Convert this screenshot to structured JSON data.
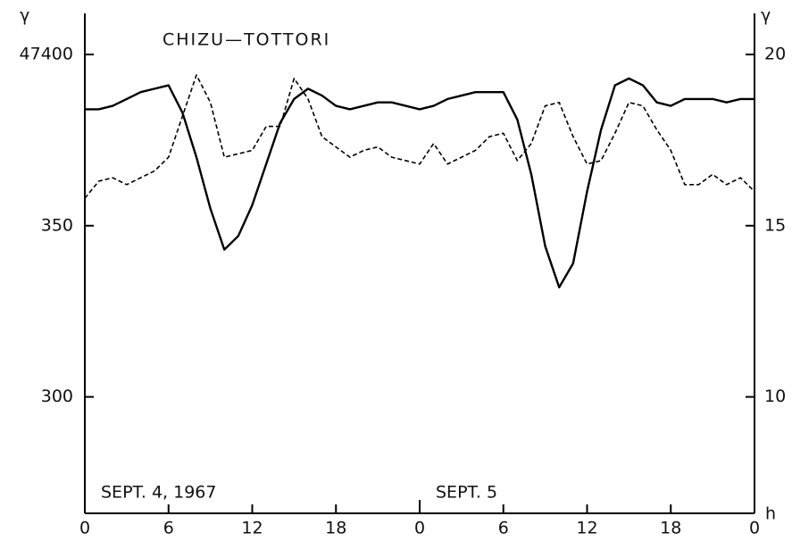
{
  "chart_data": {
    "type": "line",
    "title": "CHIZU—TOTTORI",
    "y_unit": "γ",
    "y2_unit": "γ",
    "x_unit": "h",
    "annotations": [
      {
        "text": "SEPT. 4, 1967",
        "x": 0
      },
      {
        "text": "SEPT. 5",
        "x": 24
      }
    ],
    "x": [
      0,
      1,
      2,
      3,
      4,
      5,
      6,
      7,
      8,
      9,
      10,
      11,
      12,
      13,
      14,
      15,
      16,
      17,
      18,
      19,
      20,
      21,
      22,
      23,
      24,
      25,
      26,
      27,
      28,
      29,
      30,
      31,
      32,
      33,
      34,
      35,
      36,
      37,
      38,
      39,
      40,
      41,
      42,
      43,
      44,
      45,
      46,
      47,
      48
    ],
    "xlim": [
      0,
      48
    ],
    "xticks": [
      0,
      6,
      12,
      18,
      {
        "value": 24,
        "label": "0"
      },
      {
        "value": 30,
        "label": "6"
      },
      {
        "value": 36,
        "label": "12"
      },
      {
        "value": 42,
        "label": "18"
      },
      {
        "value": 48,
        "label": "0"
      }
    ],
    "ylim": [
      47266,
      47412
    ],
    "yticks": [
      47400,
      {
        "value": 47350,
        "label": "350"
      },
      {
        "value": 47300,
        "label": "300"
      }
    ],
    "y2lim": [
      6.6,
      21.2
    ],
    "y2ticks": [
      20,
      15,
      10
    ],
    "series": [
      {
        "name": "solid",
        "color": "#000000",
        "dash": false,
        "values": [
          47384,
          47384,
          47385,
          47387,
          47389,
          47390,
          47391,
          47383,
          47370,
          47355,
          47343,
          47347,
          47356,
          47368,
          47380,
          47387,
          47390,
          47388,
          47385,
          47384,
          47385,
          47386,
          47386,
          47385,
          47384,
          47385,
          47387,
          47388,
          47389,
          47389,
          47389,
          47381,
          47365,
          47344,
          47332,
          47339,
          47360,
          47378,
          47391,
          47393,
          47391,
          47386,
          47385,
          47387,
          47387,
          47387,
          47386,
          47387,
          47387
        ]
      },
      {
        "name": "dashed",
        "color": "#000000",
        "dash": true,
        "axis": "y2",
        "values": [
          15.8,
          16.3,
          16.4,
          16.2,
          16.4,
          16.6,
          17.0,
          18.2,
          19.4,
          18.6,
          17.0,
          17.1,
          17.2,
          17.9,
          17.9,
          19.3,
          18.7,
          17.6,
          17.3,
          17.0,
          17.2,
          17.3,
          17.0,
          16.9,
          16.8,
          17.4,
          16.8,
          17.0,
          17.2,
          17.6,
          17.7,
          16.9,
          17.4,
          18.5,
          18.6,
          17.6,
          16.8,
          16.9,
          17.7,
          18.6,
          18.5,
          17.8,
          17.2,
          16.2,
          16.2,
          16.5,
          16.2,
          16.4,
          16.0
        ]
      }
    ]
  }
}
